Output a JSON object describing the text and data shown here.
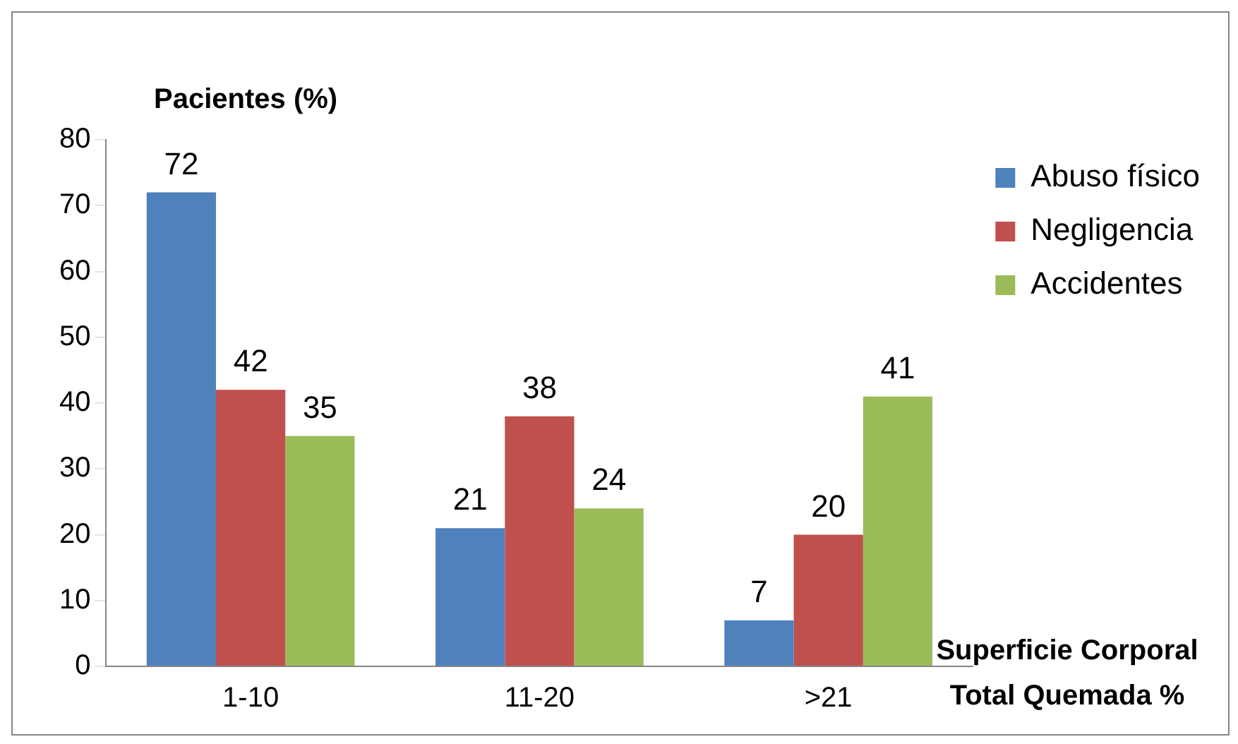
{
  "chart_data": {
    "type": "bar",
    "ylabel": "Pacientes (%)",
    "xlabel": "Superficie Corporal\nTotal Quemada %",
    "categories": [
      "1-10",
      "11-20",
      ">21"
    ],
    "series": [
      {
        "name": "Abuso físico",
        "color": "#4f81bd",
        "values": [
          72,
          21,
          7
        ]
      },
      {
        "name": "Negligencia",
        "color": "#c0504d",
        "values": [
          42,
          38,
          20
        ]
      },
      {
        "name": "Accidentes",
        "color": "#9bbb59",
        "values": [
          35,
          24,
          41
        ]
      }
    ],
    "ylim": [
      0,
      80
    ],
    "yticks": [
      0,
      10,
      20,
      30,
      40,
      50,
      60,
      70,
      80
    ],
    "grid": false,
    "legend": "top right",
    "data_labels": true
  }
}
